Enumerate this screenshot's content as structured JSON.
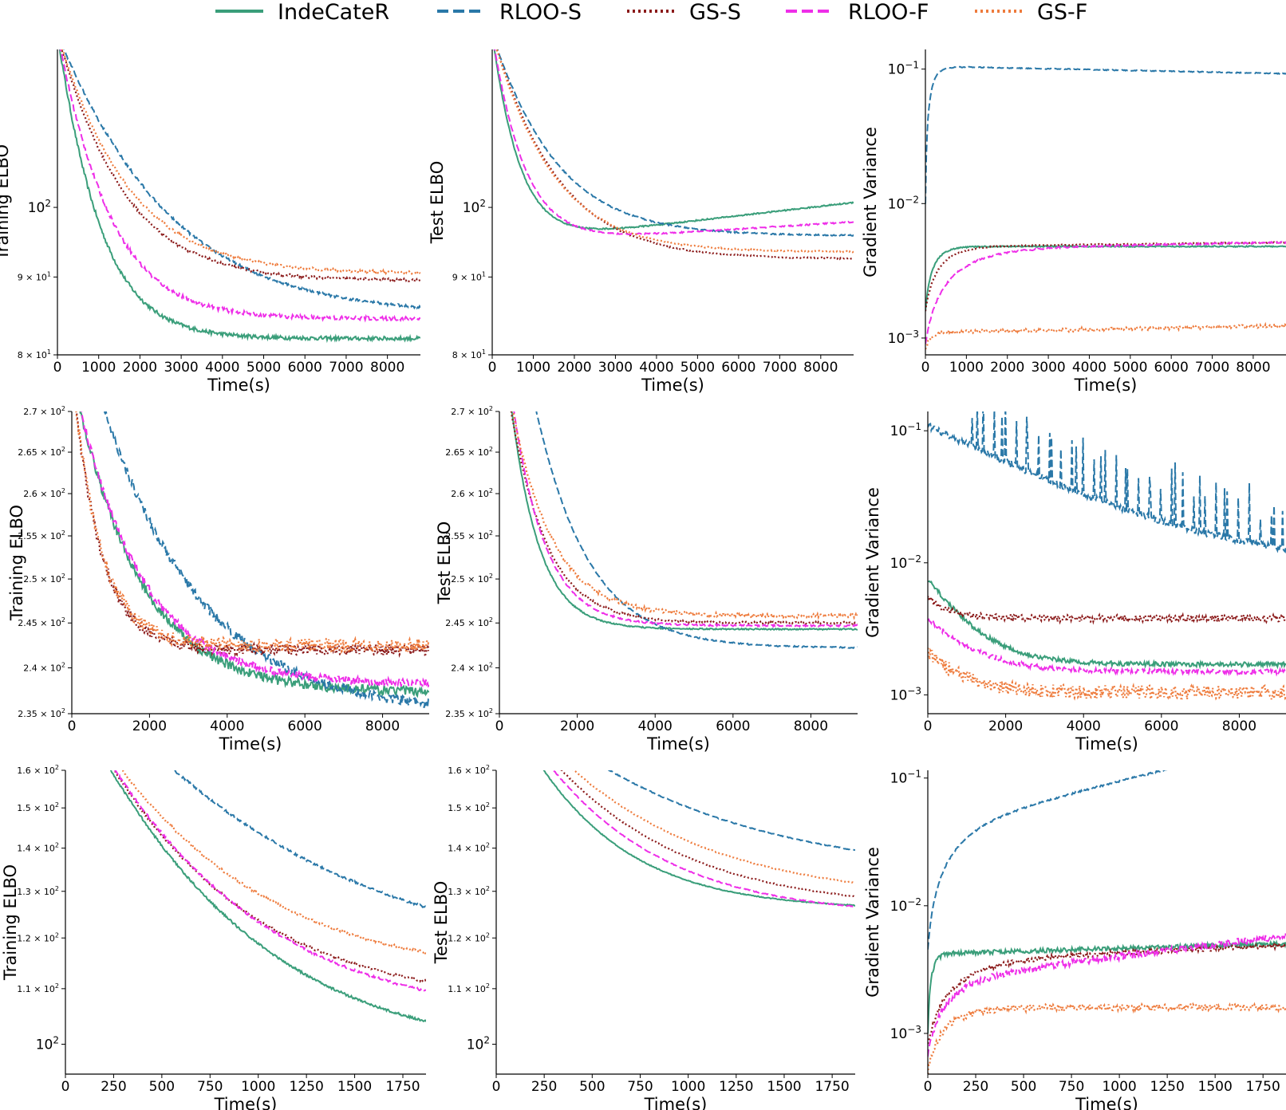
{
  "colors": {
    "IndeCateR": "#3a9e7a",
    "RLOO-S": "#2a78a8",
    "GS-S": "#8b1a1a",
    "RLOO-F": "#ee2ee8",
    "GS-F": "#ee7b3c"
  },
  "legend": [
    {
      "name": "IndeCateR",
      "dash": "solid"
    },
    {
      "name": "RLOO-S",
      "dash": "dashed"
    },
    {
      "name": "GS-S",
      "dash": "dotted"
    },
    {
      "name": "RLOO-F",
      "dash": "dashed"
    },
    {
      "name": "GS-F",
      "dash": "dotted"
    }
  ],
  "chart_data": [
    {
      "id": "r1c1",
      "type": "line",
      "yscale": "log",
      "xlabel": "Time(s)",
      "ylabel": "Training ELBO",
      "xlim": [
        0,
        8800
      ],
      "ylim": [
        80,
        127
      ],
      "xticks": [
        0,
        1000,
        2000,
        3000,
        4000,
        5000,
        6000,
        7000,
        8000
      ],
      "xticklabels": [
        "0",
        "1000",
        "2000",
        "3000",
        "4000",
        "5000",
        "6000",
        "7000",
        "8000"
      ],
      "yticks": [
        80,
        90,
        100
      ],
      "yticklabels": [
        {
          "m": "8 × 10",
          "e": "1",
          "small": true
        },
        {
          "m": "9 × 10",
          "e": "1",
          "small": true
        },
        {
          "m": "10",
          "e": "2",
          "small": false
        }
      ],
      "series": [
        {
          "name": "IndeCateR",
          "y0": 130,
          "y1": 82,
          "tau": 900,
          "noise": 0.003
        },
        {
          "name": "RLOO-S",
          "y0": 130,
          "y1": 85,
          "tau": 2300,
          "noise": 0.002
        },
        {
          "name": "GS-S",
          "y0": 130,
          "y1": 89.5,
          "tau": 1400,
          "noise": 0.002
        },
        {
          "name": "RLOO-F",
          "y0": 130,
          "y1": 84.5,
          "tau": 1100,
          "noise": 0.003
        },
        {
          "name": "GS-F",
          "y0": 130,
          "y1": 90.5,
          "tau": 1500,
          "noise": 0.002
        }
      ]
    },
    {
      "id": "r1c2",
      "type": "line",
      "yscale": "log",
      "xlabel": "Time(s)",
      "ylabel": "Test ELBO",
      "xlim": [
        0,
        8800
      ],
      "ylim": [
        80,
        127
      ],
      "xticks": [
        0,
        1000,
        2000,
        3000,
        4000,
        5000,
        6000,
        7000,
        8000
      ],
      "xticklabels": [
        "0",
        "1000",
        "2000",
        "3000",
        "4000",
        "5000",
        "6000",
        "7000",
        "8000"
      ],
      "yticks": [
        80,
        90,
        100
      ],
      "yticklabels": [
        {
          "m": "8 × 10",
          "e": "1",
          "small": true
        },
        {
          "m": "9 × 10",
          "e": "1",
          "small": true
        },
        {
          "m": "10",
          "e": "2",
          "small": false
        }
      ],
      "series": [
        {
          "name": "IndeCateR",
          "y0": 130,
          "y1": 94.5,
          "tau": 600,
          "slope": 0.00075,
          "noise": 0.001
        },
        {
          "name": "RLOO-S",
          "y0": 130,
          "y1": 95.8,
          "tau": 1400,
          "noise": 0.001
        },
        {
          "name": "GS-S",
          "y0": 130,
          "y1": 92.5,
          "tau": 1400,
          "noise": 0.001
        },
        {
          "name": "RLOO-F",
          "y0": 130,
          "y1": 94.5,
          "tau": 700,
          "slope": 0.0004,
          "noise": 0.001
        },
        {
          "name": "GS-F",
          "y0": 130,
          "y1": 93.5,
          "tau": 1300,
          "noise": 0.001
        }
      ]
    },
    {
      "id": "r1c3",
      "type": "line",
      "yscale": "log",
      "xlabel": "Time(s)",
      "ylabel": "Gradient Variance",
      "xlim": [
        0,
        8800
      ],
      "ylim": [
        0.00075,
        0.14
      ],
      "xticks": [
        0,
        1000,
        2000,
        3000,
        4000,
        5000,
        6000,
        7000,
        8000
      ],
      "xticklabels": [
        "0",
        "1000",
        "2000",
        "3000",
        "4000",
        "5000",
        "6000",
        "7000",
        "8000"
      ],
      "yticks": [
        0.001,
        0.01,
        0.1
      ],
      "yticklabels": [
        {
          "m": "10",
          "e": "−3",
          "small": false
        },
        {
          "m": "10",
          "e": "−2",
          "small": false
        },
        {
          "m": "10",
          "e": "−1",
          "small": false
        }
      ],
      "series": [
        {
          "name": "IndeCateR",
          "kind": "rise",
          "y0": 0.0016,
          "y1": 0.0048,
          "tau": 250,
          "drift": 0.0,
          "noise": 0.01
        },
        {
          "name": "RLOO-S",
          "kind": "rise",
          "y0": 0.01,
          "y1": 0.105,
          "tau": 150,
          "drift": -0.055,
          "noise": 0.008
        },
        {
          "name": "GS-S",
          "kind": "rise",
          "y0": 0.0016,
          "y1": 0.0048,
          "tau": 450,
          "drift": 0.03,
          "noise": 0.01
        },
        {
          "name": "RLOO-F",
          "kind": "rise",
          "y0": 0.0009,
          "y1": 0.0046,
          "tau": 900,
          "drift": 0.05,
          "noise": 0.015
        },
        {
          "name": "GS-F",
          "kind": "rise",
          "y0": 0.00082,
          "y1": 0.0011,
          "tau": 120,
          "drift": 0.05,
          "noise": 0.03
        }
      ]
    },
    {
      "id": "r2c1",
      "type": "line",
      "yscale": "log",
      "xlabel": "Time(s)",
      "ylabel": "Training ELBO",
      "xlim": [
        0,
        9200
      ],
      "ylim": [
        235,
        270
      ],
      "xticks": [
        0,
        2000,
        4000,
        6000,
        8000
      ],
      "xticklabels": [
        "0",
        "2000",
        "4000",
        "6000",
        "8000"
      ],
      "yticks": [
        235,
        240,
        245,
        250,
        255,
        260,
        265,
        270
      ],
      "yticklabels": [
        {
          "m": "2.35 × 10",
          "e": "2",
          "small": true
        },
        {
          "m": "2.4 × 10",
          "e": "2",
          "small": true
        },
        {
          "m": "2.45 × 10",
          "e": "2",
          "small": true
        },
        {
          "m": "2.5 × 10",
          "e": "2",
          "small": true
        },
        {
          "m": "2.55 × 10",
          "e": "2",
          "small": true
        },
        {
          "m": "2.6 × 10",
          "e": "2",
          "small": true
        },
        {
          "m": "2.65 × 10",
          "e": "2",
          "small": true
        },
        {
          "m": "2.7 × 10",
          "e": "2",
          "small": true
        }
      ],
      "series": [
        {
          "name": "IndeCateR",
          "y0": 275,
          "y1": 237.3,
          "tau": 1600,
          "noise": 0.0022
        },
        {
          "name": "RLOO-S",
          "y0": 285,
          "y1": 235.0,
          "tau": 2400,
          "noise": 0.0022
        },
        {
          "name": "GS-S",
          "y0": 275,
          "y1": 242.0,
          "tau": 700,
          "noise": 0.0025
        },
        {
          "name": "RLOO-F",
          "y0": 275,
          "y1": 238.2,
          "tau": 1600,
          "noise": 0.0018
        },
        {
          "name": "GS-F",
          "y0": 275,
          "y1": 242.5,
          "tau": 700,
          "noise": 0.003
        }
      ]
    },
    {
      "id": "r2c2",
      "type": "line",
      "yscale": "log",
      "xlabel": "Time(s)",
      "ylabel": "Test ELBO",
      "xlim": [
        0,
        9200
      ],
      "ylim": [
        235,
        270
      ],
      "xticks": [
        0,
        2000,
        4000,
        6000,
        8000
      ],
      "xticklabels": [
        "0",
        "2000",
        "4000",
        "6000",
        "8000"
      ],
      "yticks": [
        235,
        240,
        245,
        250,
        255,
        260,
        265,
        270
      ],
      "yticklabels": [
        {
          "m": "2.35 × 10",
          "e": "2",
          "small": true
        },
        {
          "m": "2.4 × 10",
          "e": "2",
          "small": true
        },
        {
          "m": "2.45 × 10",
          "e": "2",
          "small": true
        },
        {
          "m": "2.5 × 10",
          "e": "2",
          "small": true
        },
        {
          "m": "2.55 × 10",
          "e": "2",
          "small": true
        },
        {
          "m": "2.6 × 10",
          "e": "2",
          "small": true
        },
        {
          "m": "2.65 × 10",
          "e": "2",
          "small": true
        },
        {
          "m": "2.7 × 10",
          "e": "2",
          "small": true
        }
      ],
      "series": [
        {
          "name": "IndeCateR",
          "y0": 285,
          "y1": 244.3,
          "tau": 700,
          "noise": 0.0003
        },
        {
          "name": "RLOO-S",
          "y0": 300,
          "y1": 242.2,
          "tau": 1300,
          "noise": 0.0003
        },
        {
          "name": "GS-S",
          "y0": 280,
          "y1": 245.0,
          "tau": 900,
          "noise": 0.0005
        },
        {
          "name": "RLOO-F",
          "y0": 285,
          "y1": 244.7,
          "tau": 800,
          "noise": 0.0004
        },
        {
          "name": "GS-F",
          "y0": 280,
          "y1": 245.8,
          "tau": 1000,
          "noise": 0.0009
        }
      ]
    },
    {
      "id": "r2c3",
      "type": "line",
      "yscale": "log",
      "xlabel": "Time(s)",
      "ylabel": "Gradient Variance",
      "xlim": [
        0,
        9200
      ],
      "ylim": [
        0.00072,
        0.14
      ],
      "xticks": [
        0,
        2000,
        4000,
        6000,
        8000
      ],
      "xticklabels": [
        "0",
        "2000",
        "4000",
        "6000",
        "8000"
      ],
      "yticks": [
        0.001,
        0.01,
        0.1
      ],
      "yticklabels": [
        {
          "m": "10",
          "e": "−3",
          "small": false
        },
        {
          "m": "10",
          "e": "−2",
          "small": false
        },
        {
          "m": "10",
          "e": "−1",
          "small": false
        }
      ],
      "series": [
        {
          "name": "IndeCateR",
          "kind": "decay",
          "y0": 0.0075,
          "y1": 0.0017,
          "tau": 900,
          "noise": 0.04
        },
        {
          "name": "RLOO-S",
          "kind": "decay",
          "y0": 0.11,
          "y1": 0.009,
          "tau": 2800,
          "noise": 0.06,
          "spikes": true
        },
        {
          "name": "GS-S",
          "kind": "decay",
          "y0": 0.0055,
          "y1": 0.0038,
          "tau": 500,
          "noise": 0.06
        },
        {
          "name": "RLOO-F",
          "kind": "decay",
          "y0": 0.0038,
          "y1": 0.0015,
          "tau": 1000,
          "noise": 0.04
        },
        {
          "name": "GS-F",
          "kind": "decay",
          "y0": 0.0021,
          "y1": 0.00105,
          "tau": 800,
          "noise": 0.12
        }
      ]
    },
    {
      "id": "r3c1",
      "type": "line",
      "yscale": "log",
      "xlabel": "Time(s)",
      "ylabel": "Training ELBO",
      "xlim": [
        0,
        1870
      ],
      "ylim": [
        95,
        160
      ],
      "xticks": [
        0,
        250,
        500,
        750,
        1000,
        1250,
        1500,
        1750
      ],
      "xticklabels": [
        "0",
        "250",
        "500",
        "750",
        "1000",
        "1250",
        "1500",
        "1750"
      ],
      "yticks": [
        100,
        110,
        120,
        130,
        140,
        150,
        160
      ],
      "yticklabels": [
        {
          "m": "10",
          "e": "2",
          "small": false
        },
        {
          "m": "1.1 × 10",
          "e": "2",
          "small": true
        },
        {
          "m": "1.2 × 10",
          "e": "2",
          "small": true
        },
        {
          "m": "1.3 × 10",
          "e": "2",
          "small": true
        },
        {
          "m": "1.4 × 10",
          "e": "2",
          "small": true
        },
        {
          "m": "1.5 × 10",
          "e": "2",
          "small": true
        },
        {
          "m": "1.6 × 10",
          "e": "2",
          "small": true
        }
      ],
      "series": [
        {
          "name": "IndeCateR",
          "y0": 185,
          "y1": 98,
          "tau": 700,
          "noise": 0.002
        },
        {
          "name": "RLOO-S",
          "y0": 195,
          "y1": 114,
          "tau": 1000,
          "noise": 0.002
        },
        {
          "name": "GS-S",
          "y0": 185,
          "y1": 107,
          "tau": 650,
          "noise": 0.002
        },
        {
          "name": "RLOO-F",
          "y0": 185,
          "y1": 104,
          "tau": 700,
          "noise": 0.002
        },
        {
          "name": "GS-F",
          "y0": 185,
          "y1": 112,
          "tau": 700,
          "noise": 0.002
        }
      ]
    },
    {
      "id": "r3c2",
      "type": "line",
      "yscale": "log",
      "xlabel": "Time(s)",
      "ylabel": "Test ELBO",
      "xlim": [
        0,
        1870
      ],
      "ylim": [
        95,
        160
      ],
      "xticks": [
        0,
        250,
        500,
        750,
        1000,
        1250,
        1500,
        1750
      ],
      "xticklabels": [
        "0",
        "250",
        "500",
        "750",
        "1000",
        "1250",
        "1500",
        "1750"
      ],
      "yticks": [
        100,
        110,
        120,
        130,
        140,
        150,
        160
      ],
      "yticklabels": [
        {
          "m": "10",
          "e": "2",
          "small": false
        },
        {
          "m": "1.1 × 10",
          "e": "2",
          "small": true
        },
        {
          "m": "1.2 × 10",
          "e": "2",
          "small": true
        },
        {
          "m": "1.3 × 10",
          "e": "2",
          "small": true
        },
        {
          "m": "1.4 × 10",
          "e": "2",
          "small": true
        },
        {
          "m": "1.5 × 10",
          "e": "2",
          "small": true
        },
        {
          "m": "1.6 × 10",
          "e": "2",
          "small": true
        }
      ],
      "series": [
        {
          "name": "IndeCateR",
          "y0": 185,
          "y1": 126,
          "tau": 450,
          "noise": 0.0008
        },
        {
          "name": "RLOO-S",
          "y0": 185,
          "y1": 133,
          "tau": 900,
          "noise": 0.0008
        },
        {
          "name": "GS-S",
          "y0": 185,
          "y1": 126,
          "tau": 620,
          "noise": 0.0008
        },
        {
          "name": "RLOO-F",
          "y0": 185,
          "y1": 124.5,
          "tau": 560,
          "noise": 0.0008
        },
        {
          "name": "GS-F",
          "y0": 185,
          "y1": 128,
          "tau": 700,
          "noise": 0.0008
        }
      ]
    },
    {
      "id": "r3c3",
      "type": "line",
      "yscale": "log",
      "xlabel": "Time(s)",
      "ylabel": "Gradient Variance",
      "xlim": [
        0,
        1870
      ],
      "ylim": [
        0.00048,
        0.115
      ],
      "xticks": [
        0,
        250,
        500,
        750,
        1000,
        1250,
        1500,
        1750
      ],
      "xticklabels": [
        "0",
        "250",
        "500",
        "750",
        "1000",
        "1250",
        "1500",
        "1750"
      ],
      "yticks": [
        0.001,
        0.01,
        0.1
      ],
      "yticklabels": [
        {
          "m": "10",
          "e": "−3",
          "small": false
        },
        {
          "m": "10",
          "e": "−2",
          "small": false
        },
        {
          "m": "10",
          "e": "−1",
          "small": false
        }
      ],
      "series": [
        {
          "name": "IndeCateR",
          "kind": "rise",
          "y0": 0.001,
          "y1": 0.0042,
          "tau": 25,
          "drift": 0.08,
          "noise": 0.04
        },
        {
          "name": "RLOO-S",
          "kind": "rise",
          "y0": 0.0045,
          "y1": 0.04,
          "tau": 180,
          "drift": 0.7,
          "noise": 0.015
        },
        {
          "name": "GS-S",
          "kind": "rise",
          "y0": 0.0008,
          "y1": 0.0037,
          "tau": 200,
          "drift": 0.12,
          "noise": 0.04
        },
        {
          "name": "RLOO-F",
          "kind": "rise",
          "y0": 0.0007,
          "y1": 0.0026,
          "tau": 150,
          "drift": 0.35,
          "noise": 0.06
        },
        {
          "name": "GS-F",
          "kind": "rise",
          "y0": 0.0005,
          "y1": 0.0016,
          "tau": 120,
          "drift": 0.0,
          "noise": 0.06
        }
      ]
    }
  ]
}
